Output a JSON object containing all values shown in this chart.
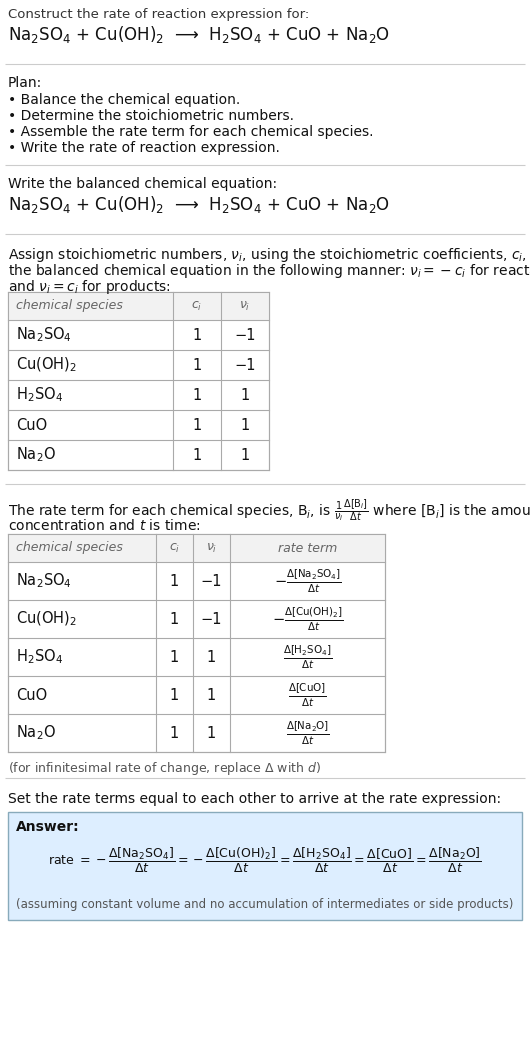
{
  "title_line1": "Construct the rate of reaction expression for:",
  "title_line2": "Na$_2$SO$_4$ + Cu(OH)$_2$  ⟶  H$_2$SO$_4$ + CuO + Na$_2$O",
  "plan_header": "Plan:",
  "plan_items": [
    "• Balance the chemical equation.",
    "• Determine the stoichiometric numbers.",
    "• Assemble the rate term for each chemical species.",
    "• Write the rate of reaction expression."
  ],
  "balanced_eq_header": "Write the balanced chemical equation:",
  "balanced_eq": "Na$_2$SO$_4$ + Cu(OH)$_2$  ⟶  H$_2$SO$_4$ + CuO + Na$_2$O",
  "stoich_text1": "Assign stoichiometric numbers, $\\nu_i$, using the stoichiometric coefficients, $c_i$, from",
  "stoich_text2": "the balanced chemical equation in the following manner: $\\nu_i = -c_i$ for reactants",
  "stoich_text3": "and $\\nu_i = c_i$ for products:",
  "table1_headers": [
    "chemical species",
    "$c_i$",
    "$\\nu_i$"
  ],
  "table1_rows": [
    [
      "Na$_2$SO$_4$",
      "1",
      "−1"
    ],
    [
      "Cu(OH)$_2$",
      "1",
      "−1"
    ],
    [
      "H$_2$SO$_4$",
      "1",
      "1"
    ],
    [
      "CuO",
      "1",
      "1"
    ],
    [
      "Na$_2$O",
      "1",
      "1"
    ]
  ],
  "rate_text1": "The rate term for each chemical species, B$_i$, is $\\frac{1}{\\nu_i}\\frac{\\Delta[\\mathrm{B}_i]}{\\Delta t}$ where [B$_i$] is the amount",
  "rate_text2": "concentration and $t$ is time:",
  "table2_headers": [
    "chemical species",
    "$c_i$",
    "$\\nu_i$",
    "rate term"
  ],
  "table2_rows": [
    [
      "Na$_2$SO$_4$",
      "1",
      "−1",
      "$-\\frac{\\Delta[\\mathrm{Na_2SO_4}]}{\\Delta t}$"
    ],
    [
      "Cu(OH)$_2$",
      "1",
      "−1",
      "$-\\frac{\\Delta[\\mathrm{Cu(OH)_2}]}{\\Delta t}$"
    ],
    [
      "H$_2$SO$_4$",
      "1",
      "1",
      "$\\frac{\\Delta[\\mathrm{H_2SO_4}]}{\\Delta t}$"
    ],
    [
      "CuO",
      "1",
      "1",
      "$\\frac{\\Delta[\\mathrm{CuO}]}{\\Delta t}$"
    ],
    [
      "Na$_2$O",
      "1",
      "1",
      "$\\frac{\\Delta[\\mathrm{Na_2O}]}{\\Delta t}$"
    ]
  ],
  "infinitesimal_note": "(for infinitesimal rate of change, replace Δ with $d$)",
  "set_rate_text": "Set the rate terms equal to each other to arrive at the rate expression:",
  "answer_label": "Answer:",
  "answer_bg_color": "#ddeeff",
  "answer_border_color": "#88aabb",
  "assuming_note": "(assuming constant volume and no accumulation of intermediates or side products)",
  "bg_color": "#ffffff",
  "divider_color": "#cccccc",
  "table_border_color": "#aaaaaa",
  "header_bg": "#f2f2f2",
  "text_gray": "#333333",
  "text_dark": "#111111"
}
